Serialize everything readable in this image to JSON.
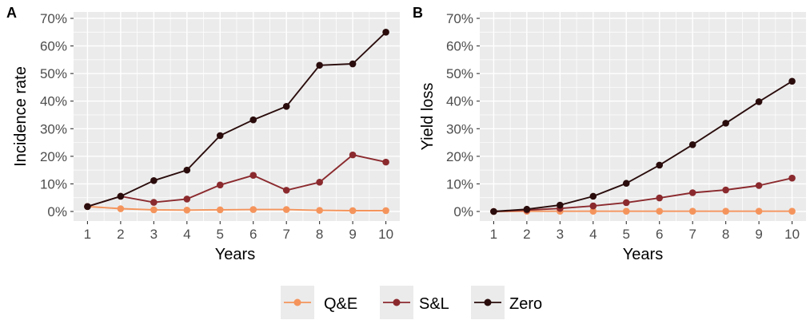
{
  "colors": {
    "qe": "#F4945C",
    "sl": "#8B2A2E",
    "zero": "#2A0C0C"
  },
  "legend": {
    "items": [
      {
        "label": "Q&E",
        "series": "qe"
      },
      {
        "label": "S&L",
        "series": "sl"
      },
      {
        "label": "Zero",
        "series": "zero"
      }
    ]
  },
  "chart_data": [
    {
      "panel": "A",
      "type": "line",
      "xlabel": "Years",
      "ylabel": "Incidence rate",
      "x": [
        1,
        2,
        3,
        4,
        5,
        6,
        7,
        8,
        9,
        10
      ],
      "xticks": [
        "1",
        "2",
        "3",
        "4",
        "5",
        "6",
        "7",
        "8",
        "9",
        "10"
      ],
      "ylim": [
        0,
        70
      ],
      "yticks": [
        "0%",
        "10%",
        "20%",
        "30%",
        "40%",
        "50%",
        "60%",
        "70%"
      ],
      "grid": true,
      "series": [
        {
          "name": "Q&E",
          "key": "qe",
          "values": [
            1.8,
            1.0,
            0.6,
            0.5,
            0.6,
            0.7,
            0.7,
            0.4,
            0.3,
            0.3
          ]
        },
        {
          "name": "S&L",
          "key": "sl",
          "values": [
            1.8,
            5.5,
            3.3,
            4.5,
            9.6,
            13.1,
            7.7,
            10.6,
            20.5,
            17.9
          ]
        },
        {
          "name": "Zero",
          "key": "zero",
          "values": [
            1.8,
            5.5,
            11.2,
            15.0,
            27.5,
            33.2,
            38.1,
            53.0,
            53.5,
            65.0
          ]
        }
      ]
    },
    {
      "panel": "B",
      "type": "line",
      "xlabel": "Years",
      "ylabel": "Yield loss",
      "x": [
        1,
        2,
        3,
        4,
        5,
        6,
        7,
        8,
        9,
        10
      ],
      "xticks": [
        "1",
        "2",
        "3",
        "4",
        "5",
        "6",
        "7",
        "8",
        "9",
        "10"
      ],
      "ylim": [
        0,
        70
      ],
      "yticks": [
        "0%",
        "10%",
        "20%",
        "30%",
        "40%",
        "50%",
        "60%",
        "70%"
      ],
      "grid": true,
      "series": [
        {
          "name": "Q&E",
          "key": "qe",
          "values": [
            0.0,
            0.1,
            0.1,
            0.1,
            0.1,
            0.1,
            0.1,
            0.1,
            0.1,
            0.1
          ]
        },
        {
          "name": "S&L",
          "key": "sl",
          "values": [
            0.0,
            0.5,
            1.1,
            2.0,
            3.2,
            4.9,
            6.8,
            7.8,
            9.4,
            12.1
          ]
        },
        {
          "name": "Zero",
          "key": "zero",
          "values": [
            0.0,
            0.8,
            2.3,
            5.5,
            10.2,
            16.8,
            24.2,
            32.0,
            39.8,
            47.2
          ]
        }
      ]
    }
  ]
}
